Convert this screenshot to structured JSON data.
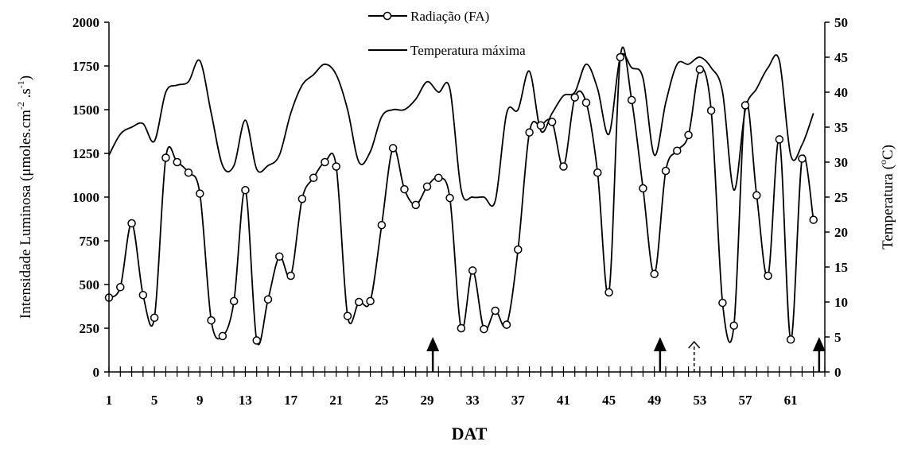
{
  "chart_data": {
    "type": "line",
    "xlabel": "DAT",
    "ylabel_left": {
      "prefix": "Intensidade Luminosa (",
      "mu": "μ",
      "unit_main": "moles.cm",
      "sup1": "-2",
      "dot_s": " .s",
      "sup2": "-1",
      "suffix": ")"
    },
    "ylabel_right": {
      "prefix": "Temperatura (",
      "sup": "o",
      "suffix": "C)"
    },
    "x_range": [
      1,
      64
    ],
    "x_tick_labels": [
      1,
      5,
      9,
      13,
      17,
      21,
      25,
      29,
      33,
      37,
      41,
      45,
      49,
      53,
      57,
      61
    ],
    "y_left_range": [
      0,
      2000
    ],
    "y_left_ticks": [
      0,
      250,
      500,
      750,
      1000,
      1250,
      1500,
      1750,
      2000
    ],
    "y_right_range": [
      0,
      50
    ],
    "y_right_ticks": [
      0,
      5,
      10,
      15,
      20,
      25,
      30,
      35,
      40,
      45,
      50
    ],
    "legend": {
      "position": "top-center",
      "entries": [
        "Radiação (FA)",
        "Temperatura máxima"
      ]
    },
    "series": [
      {
        "name": "Radiação (FA)",
        "axis": "left",
        "marker": "circle",
        "x": [
          1,
          2,
          3,
          4,
          5,
          6,
          7,
          8,
          9,
          10,
          11,
          12,
          13,
          14,
          15,
          16,
          17,
          18,
          19,
          20,
          21,
          22,
          23,
          24,
          25,
          26,
          27,
          28,
          29,
          30,
          31,
          32,
          33,
          34,
          35,
          36,
          37,
          38,
          39,
          40,
          41,
          42,
          43,
          44,
          45,
          46,
          47,
          48,
          49,
          50,
          51,
          52,
          53,
          54,
          55,
          56,
          57,
          58,
          59,
          60,
          61,
          62,
          63
        ],
        "values": [
          425,
          485,
          850,
          440,
          310,
          1225,
          1200,
          1140,
          1020,
          295,
          205,
          405,
          1040,
          180,
          415,
          660,
          550,
          990,
          1110,
          1200,
          1175,
          320,
          400,
          405,
          840,
          1280,
          1045,
          955,
          1060,
          1110,
          995,
          250,
          580,
          245,
          350,
          270,
          700,
          1370,
          1410,
          1430,
          1175,
          1570,
          1540,
          1140,
          455,
          1800,
          1555,
          1050,
          560,
          1150,
          1265,
          1355,
          1730,
          1495,
          395,
          265,
          1525,
          1010,
          550,
          1330,
          185,
          1220,
          870
        ]
      },
      {
        "name": "Temperatura máxima",
        "axis": "right",
        "marker": "none",
        "x": [
          1,
          2,
          3,
          4,
          5,
          6,
          7,
          8,
          9,
          10,
          11,
          12,
          13,
          14,
          15,
          16,
          17,
          18,
          19,
          20,
          21,
          22,
          23,
          24,
          25,
          26,
          27,
          28,
          29,
          30,
          31,
          32,
          33,
          34,
          35,
          36,
          37,
          38,
          39,
          40,
          41,
          42,
          43,
          44,
          45,
          46,
          47,
          48,
          49,
          50,
          51,
          52,
          53,
          54,
          55,
          56,
          57,
          58,
          59,
          60,
          61,
          62,
          63
        ],
        "values": [
          31,
          34,
          35,
          35.5,
          33,
          40,
          41,
          41.5,
          44.5,
          37,
          29.5,
          29.5,
          36,
          29,
          29.5,
          31,
          37,
          41,
          42.5,
          44,
          42.5,
          37.5,
          30,
          31.5,
          36.5,
          37.5,
          37.5,
          39,
          41.5,
          40,
          40.5,
          26,
          25,
          25,
          24.5,
          37,
          37.5,
          43,
          34.5,
          37,
          39.5,
          40,
          44,
          40.5,
          34,
          45,
          43.5,
          42,
          31,
          38.5,
          44,
          44,
          45,
          43.5,
          40,
          26,
          37.5,
          40.5,
          43.5,
          44.5,
          31,
          32.5,
          37
        ]
      }
    ],
    "arrows": [
      {
        "x": 29.5,
        "style": "solid"
      },
      {
        "x": 49.5,
        "style": "solid"
      },
      {
        "x": 52.5,
        "style": "dashed"
      },
      {
        "x": 63.5,
        "style": "solid"
      }
    ]
  }
}
